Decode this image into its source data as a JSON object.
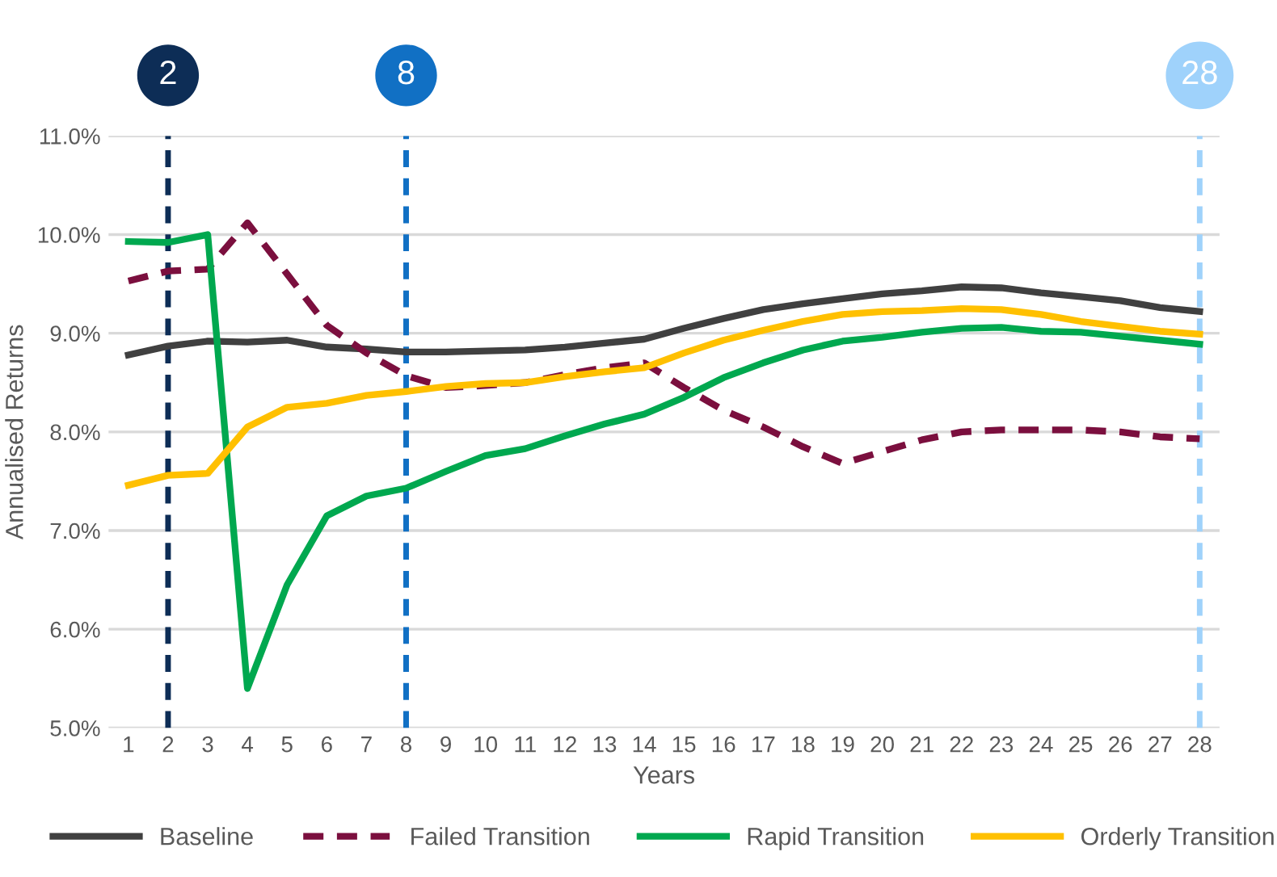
{
  "chart_data": {
    "type": "line",
    "xlabel": "Years",
    "ylabel": "Annualised Returns",
    "x": [
      1,
      2,
      3,
      4,
      5,
      6,
      7,
      8,
      9,
      10,
      11,
      12,
      13,
      14,
      15,
      16,
      17,
      18,
      19,
      20,
      21,
      22,
      23,
      24,
      25,
      26,
      27,
      28
    ],
    "xlim": [
      0.5,
      28.5
    ],
    "xticks": [
      1,
      2,
      3,
      4,
      5,
      6,
      7,
      8,
      9,
      10,
      11,
      12,
      13,
      14,
      15,
      16,
      17,
      18,
      19,
      20,
      21,
      22,
      23,
      24,
      25,
      26,
      27,
      28
    ],
    "ylim": [
      5,
      11
    ],
    "yticks": [
      {
        "value": 5,
        "label": "5.0%"
      },
      {
        "value": 6,
        "label": "6.0%"
      },
      {
        "value": 7,
        "label": "7.0%"
      },
      {
        "value": 8,
        "label": "8.0%"
      },
      {
        "value": 9,
        "label": "9.0%"
      },
      {
        "value": 10,
        "label": "10.0%"
      },
      {
        "value": 11,
        "label": "11.0%"
      }
    ],
    "grid": "y",
    "legend": "bottom",
    "marker": "none",
    "series": [
      {
        "name": "Baseline",
        "color": "#404040",
        "line_style": "solid",
        "values": [
          8.78,
          8.87,
          8.92,
          8.91,
          8.93,
          8.86,
          8.84,
          8.81,
          8.81,
          8.82,
          8.83,
          8.86,
          8.9,
          8.94,
          9.05,
          9.15,
          9.24,
          9.3,
          9.35,
          9.4,
          9.43,
          9.47,
          9.46,
          9.41,
          9.37,
          9.33,
          9.26,
          9.22
        ]
      },
      {
        "name": "Failed Transition",
        "color": "#7b0f3e",
        "line_style": "dashed",
        "values": [
          9.53,
          9.63,
          9.65,
          10.12,
          9.6,
          9.08,
          8.8,
          8.57,
          8.45,
          8.47,
          8.5,
          8.58,
          8.65,
          8.7,
          8.45,
          8.22,
          8.05,
          7.85,
          7.68,
          7.8,
          7.92,
          8.0,
          8.02,
          8.02,
          8.02,
          8.0,
          7.95,
          7.93
        ]
      },
      {
        "name": "Rapid Transition",
        "color": "#00a84f",
        "line_style": "solid",
        "values": [
          9.93,
          9.92,
          10.0,
          5.4,
          6.45,
          7.15,
          7.35,
          7.43,
          7.6,
          7.76,
          7.83,
          7.96,
          8.08,
          8.18,
          8.35,
          8.55,
          8.7,
          8.83,
          8.92,
          8.96,
          9.01,
          9.05,
          9.06,
          9.02,
          9.01,
          8.97,
          8.93,
          8.89
        ]
      },
      {
        "name": "Orderly Transition",
        "color": "#ffc000",
        "line_style": "solid",
        "values": [
          7.46,
          7.56,
          7.58,
          8.05,
          8.25,
          8.29,
          8.37,
          8.41,
          8.46,
          8.49,
          8.5,
          8.56,
          8.61,
          8.65,
          8.8,
          8.93,
          9.03,
          9.12,
          9.19,
          9.22,
          9.23,
          9.25,
          9.24,
          9.19,
          9.12,
          9.07,
          9.02,
          8.99
        ]
      }
    ],
    "ref_lines": [
      {
        "axis": "x",
        "value": 2,
        "label": "2",
        "color": "#0d2d56",
        "line_style": "dashed"
      },
      {
        "axis": "x",
        "value": 8,
        "label": "8",
        "color": "#1170c4",
        "line_style": "dashed"
      },
      {
        "axis": "x",
        "value": 28,
        "label": "28",
        "color": "#9fd2fb",
        "line_style": "dashed"
      }
    ]
  }
}
